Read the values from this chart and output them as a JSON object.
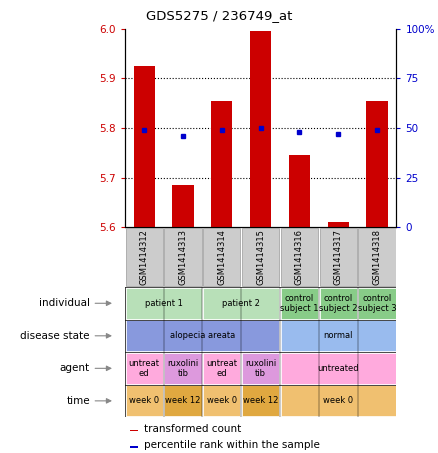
{
  "title": "GDS5275 / 236749_at",
  "samples": [
    "GSM1414312",
    "GSM1414313",
    "GSM1414314",
    "GSM1414315",
    "GSM1414316",
    "GSM1414317",
    "GSM1414318"
  ],
  "transformed_counts": [
    5.925,
    5.685,
    5.855,
    5.995,
    5.745,
    5.61,
    5.855
  ],
  "percentile_ranks": [
    49,
    46,
    49,
    50,
    48,
    47,
    49
  ],
  "ylim_left": [
    5.6,
    6.0
  ],
  "ylim_right": [
    0,
    100
  ],
  "yticks_left": [
    5.6,
    5.7,
    5.8,
    5.9,
    6.0
  ],
  "yticks_right": [
    0,
    25,
    50,
    75,
    100
  ],
  "ytick_labels_right": [
    "0",
    "25",
    "50",
    "75",
    "100%"
  ],
  "bar_color": "#cc0000",
  "dot_color": "#0000cc",
  "bar_bottom": 5.6,
  "row_labels": [
    "individual",
    "disease state",
    "agent",
    "time"
  ],
  "individual_groups": [
    {
      "label": "patient 1",
      "cols": [
        0,
        1
      ],
      "color": "#b8e0b8"
    },
    {
      "label": "patient 2",
      "cols": [
        2,
        3
      ],
      "color": "#b8e0b8"
    },
    {
      "label": "control\nsubject 1",
      "cols": [
        4
      ],
      "color": "#88cc88"
    },
    {
      "label": "control\nsubject 2",
      "cols": [
        5
      ],
      "color": "#88cc88"
    },
    {
      "label": "control\nsubject 3",
      "cols": [
        6
      ],
      "color": "#88cc88"
    }
  ],
  "disease_groups": [
    {
      "label": "alopecia areata",
      "cols": [
        0,
        1,
        2,
        3
      ],
      "color": "#8899dd"
    },
    {
      "label": "normal",
      "cols": [
        4,
        5,
        6
      ],
      "color": "#99bbee"
    }
  ],
  "agent_groups": [
    {
      "label": "untreat\ned",
      "cols": [
        0
      ],
      "color": "#ffaadd"
    },
    {
      "label": "ruxolini\ntib",
      "cols": [
        1
      ],
      "color": "#dd99dd"
    },
    {
      "label": "untreat\ned",
      "cols": [
        2
      ],
      "color": "#ffaadd"
    },
    {
      "label": "ruxolini\ntib",
      "cols": [
        3
      ],
      "color": "#dd99dd"
    },
    {
      "label": "untreated",
      "cols": [
        4,
        5,
        6
      ],
      "color": "#ffaadd"
    }
  ],
  "time_groups": [
    {
      "label": "week 0",
      "cols": [
        0
      ],
      "color": "#f0c070"
    },
    {
      "label": "week 12",
      "cols": [
        1
      ],
      "color": "#e0a840"
    },
    {
      "label": "week 0",
      "cols": [
        2
      ],
      "color": "#f0c070"
    },
    {
      "label": "week 12",
      "cols": [
        3
      ],
      "color": "#e0a840"
    },
    {
      "label": "week 0",
      "cols": [
        4,
        5,
        6
      ],
      "color": "#f0c070"
    }
  ],
  "background_color": "#ffffff",
  "xticklabel_bg": "#cccccc",
  "figsize": [
    4.38,
    4.53
  ],
  "dpi": 100
}
